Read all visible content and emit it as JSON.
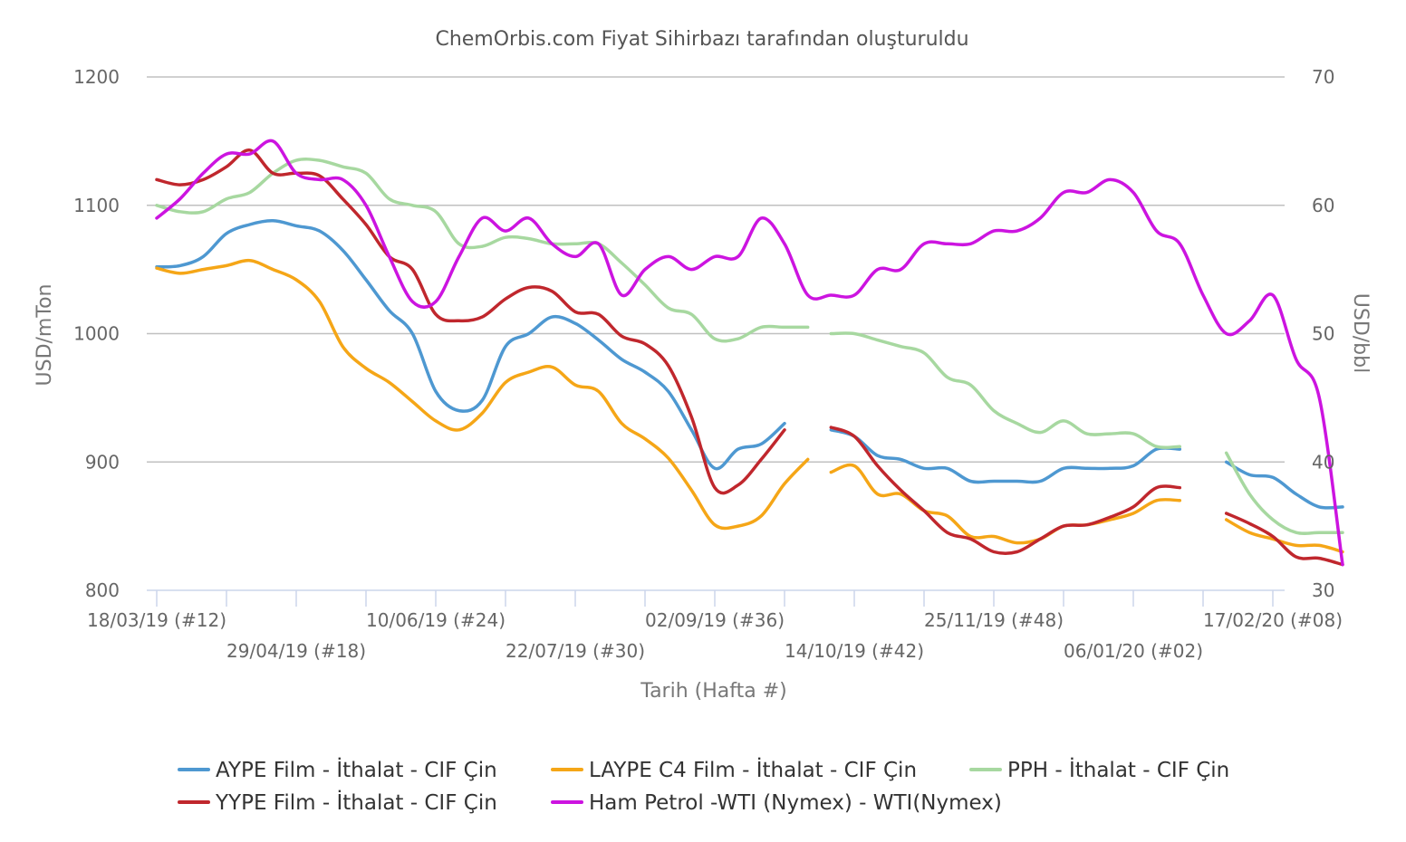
{
  "chart_data": {
    "type": "line",
    "title": "ChemOrbis.com Fiyat Sihirbazı tarafından oluşturuldu",
    "xlabel": "Tarih (Hafta #)",
    "ylabel_left": "USD/mTon",
    "ylabel_right": "USD/bbl",
    "ylim_left": [
      800,
      1200
    ],
    "ylim_right": [
      30,
      70
    ],
    "yticks_left": [
      "800",
      "900",
      "1000",
      "1100",
      "1200"
    ],
    "yticks_right": [
      "30",
      "40",
      "50",
      "60",
      "70"
    ],
    "x_week_range": [
      12,
      60
    ],
    "x_tick_labels": [
      {
        "week": 12,
        "label": "18/03/19 (#12)"
      },
      {
        "week": 18,
        "label": "29/04/19 (#18)"
      },
      {
        "week": 24,
        "label": "10/06/19 (#24)"
      },
      {
        "week": 30,
        "label": "22/07/19 (#30)"
      },
      {
        "week": 36,
        "label": "02/09/19 (#36)"
      },
      {
        "week": 42,
        "label": "14/10/19 (#42)"
      },
      {
        "week": 48,
        "label": "25/11/19 (#48)"
      },
      {
        "week": 54,
        "label": "06/01/20 (#02)"
      },
      {
        "week": 60,
        "label": "17/02/20 (#08)"
      }
    ],
    "grid": true,
    "legend_position": "bottom",
    "series": [
      {
        "name": "AYPE Film - İthalat - CIF Çin",
        "color": "#4e98d1",
        "axis": "left",
        "segments": [
          [
            [
              12,
              1052
            ],
            [
              13,
              1053
            ],
            [
              14,
              1060
            ],
            [
              15,
              1078
            ],
            [
              16,
              1085
            ],
            [
              17,
              1088
            ],
            [
              18,
              1084
            ],
            [
              19,
              1080
            ],
            [
              20,
              1065
            ],
            [
              21,
              1042
            ],
            [
              22,
              1018
            ],
            [
              23,
              1000
            ],
            [
              24,
              955
            ],
            [
              25,
              940
            ],
            [
              26,
              948
            ],
            [
              27,
              990
            ],
            [
              28,
              1000
            ],
            [
              29,
              1013
            ],
            [
              30,
              1008
            ],
            [
              31,
              995
            ],
            [
              32,
              980
            ],
            [
              33,
              970
            ],
            [
              34,
              955
            ],
            [
              35,
              925
            ],
            [
              36,
              895
            ],
            [
              37,
              910
            ],
            [
              38,
              914
            ],
            [
              39,
              930
            ]
          ],
          [
            [
              41,
              925
            ],
            [
              42,
              920
            ],
            [
              43,
              905
            ],
            [
              44,
              902
            ],
            [
              45,
              895
            ],
            [
              46,
              895
            ],
            [
              47,
              885
            ],
            [
              48,
              885
            ],
            [
              49,
              885
            ],
            [
              50,
              885
            ],
            [
              51,
              895
            ],
            [
              52,
              895
            ],
            [
              53,
              895
            ],
            [
              54,
              897
            ],
            [
              55,
              910
            ],
            [
              56,
              910
            ]
          ],
          [
            [
              58,
              900
            ],
            [
              59,
              890
            ],
            [
              60,
              888
            ],
            [
              61,
              875
            ],
            [
              62,
              865
            ],
            [
              63,
              865
            ]
          ]
        ]
      },
      {
        "name": "LAYPE C4 Film - İthalat - CIF Çin",
        "color": "#f5a617",
        "axis": "left",
        "segments": [
          [
            [
              12,
              1051
            ],
            [
              13,
              1047
            ],
            [
              14,
              1050
            ],
            [
              15,
              1053
            ],
            [
              16,
              1057
            ],
            [
              17,
              1050
            ],
            [
              18,
              1042
            ],
            [
              19,
              1025
            ],
            [
              20,
              990
            ],
            [
              21,
              973
            ],
            [
              22,
              962
            ],
            [
              23,
              947
            ],
            [
              24,
              932
            ],
            [
              25,
              925
            ],
            [
              26,
              938
            ],
            [
              27,
              962
            ],
            [
              28,
              970
            ],
            [
              29,
              974
            ],
            [
              30,
              960
            ],
            [
              31,
              955
            ],
            [
              32,
              930
            ],
            [
              33,
              918
            ],
            [
              34,
              903
            ],
            [
              35,
              878
            ],
            [
              36,
              851
            ],
            [
              37,
              850
            ],
            [
              38,
              858
            ],
            [
              39,
              883
            ],
            [
              40,
              902
            ]
          ],
          [
            [
              41,
              892
            ],
            [
              42,
              897
            ],
            [
              43,
              875
            ],
            [
              44,
              875
            ],
            [
              45,
              862
            ],
            [
              46,
              858
            ],
            [
              47,
              842
            ],
            [
              48,
              842
            ],
            [
              49,
              837
            ],
            [
              50,
              840
            ],
            [
              51,
              850
            ],
            [
              52,
              851
            ],
            [
              53,
              855
            ],
            [
              54,
              860
            ],
            [
              55,
              870
            ],
            [
              56,
              870
            ]
          ],
          [
            [
              58,
              855
            ],
            [
              59,
              845
            ],
            [
              60,
              840
            ],
            [
              61,
              835
            ],
            [
              62,
              835
            ],
            [
              63,
              830
            ]
          ]
        ]
      },
      {
        "name": "PPH - İthalat - CIF Çin",
        "color": "#a7d8a0",
        "axis": "left",
        "segments": [
          [
            [
              12,
              1100
            ],
            [
              13,
              1095
            ],
            [
              14,
              1095
            ],
            [
              15,
              1105
            ],
            [
              16,
              1110
            ],
            [
              17,
              1125
            ],
            [
              18,
              1135
            ],
            [
              19,
              1135
            ],
            [
              20,
              1130
            ],
            [
              21,
              1125
            ],
            [
              22,
              1105
            ],
            [
              23,
              1100
            ],
            [
              24,
              1095
            ],
            [
              25,
              1070
            ],
            [
              26,
              1068
            ],
            [
              27,
              1075
            ],
            [
              28,
              1074
            ],
            [
              29,
              1070
            ],
            [
              30,
              1070
            ],
            [
              31,
              1070
            ],
            [
              32,
              1055
            ],
            [
              33,
              1038
            ],
            [
              34,
              1020
            ],
            [
              35,
              1015
            ],
            [
              36,
              996
            ],
            [
              37,
              996
            ],
            [
              38,
              1005
            ],
            [
              39,
              1005
            ],
            [
              40,
              1005
            ]
          ],
          [
            [
              41,
              1000
            ],
            [
              42,
              1000
            ],
            [
              43,
              995
            ],
            [
              44,
              990
            ],
            [
              45,
              985
            ],
            [
              46,
              966
            ],
            [
              47,
              960
            ],
            [
              48,
              940
            ],
            [
              49,
              930
            ],
            [
              50,
              923
            ],
            [
              51,
              932
            ],
            [
              52,
              922
            ],
            [
              53,
              922
            ],
            [
              54,
              922
            ],
            [
              55,
              912
            ],
            [
              56,
              912
            ]
          ],
          [
            [
              58,
              907
            ],
            [
              59,
              875
            ],
            [
              60,
              855
            ],
            [
              61,
              845
            ],
            [
              62,
              845
            ],
            [
              63,
              845
            ]
          ]
        ]
      },
      {
        "name": "YYPE Film - İthalat - CIF Çin",
        "color": "#c0272d",
        "axis": "left",
        "segments": [
          [
            [
              12,
              1120
            ],
            [
              13,
              1116
            ],
            [
              14,
              1120
            ],
            [
              15,
              1130
            ],
            [
              16,
              1143
            ],
            [
              17,
              1125
            ],
            [
              18,
              1125
            ],
            [
              19,
              1123
            ],
            [
              20,
              1105
            ],
            [
              21,
              1085
            ],
            [
              22,
              1060
            ],
            [
              23,
              1050
            ],
            [
              24,
              1015
            ],
            [
              25,
              1010
            ],
            [
              26,
              1013
            ],
            [
              27,
              1027
            ],
            [
              28,
              1036
            ],
            [
              29,
              1033
            ],
            [
              30,
              1017
            ],
            [
              31,
              1015
            ],
            [
              32,
              998
            ],
            [
              33,
              992
            ],
            [
              34,
              975
            ],
            [
              35,
              935
            ],
            [
              36,
              880
            ],
            [
              37,
              882
            ],
            [
              38,
              902
            ],
            [
              39,
              925
            ]
          ],
          [
            [
              41,
              927
            ],
            [
              42,
              920
            ],
            [
              43,
              897
            ],
            [
              44,
              878
            ],
            [
              45,
              862
            ],
            [
              46,
              845
            ],
            [
              47,
              840
            ],
            [
              48,
              830
            ],
            [
              49,
              830
            ],
            [
              50,
              840
            ],
            [
              51,
              850
            ],
            [
              52,
              851
            ],
            [
              53,
              857
            ],
            [
              54,
              865
            ],
            [
              55,
              880
            ],
            [
              56,
              880
            ]
          ],
          [
            [
              58,
              860
            ],
            [
              59,
              852
            ],
            [
              60,
              842
            ],
            [
              61,
              826
            ],
            [
              62,
              825
            ],
            [
              63,
              820
            ]
          ]
        ]
      },
      {
        "name": "Ham Petrol -WTI (Nymex) - WTI(Nymex)",
        "color": "#cc14e0",
        "axis": "right",
        "segments": [
          [
            [
              12,
              59
            ],
            [
              13,
              60.5
            ],
            [
              14,
              62.5
            ],
            [
              15,
              64
            ],
            [
              16,
              64
            ],
            [
              17,
              65
            ],
            [
              18,
              62.5
            ],
            [
              19,
              62
            ],
            [
              20,
              62
            ],
            [
              21,
              60
            ],
            [
              22,
              56
            ],
            [
              23,
              52.5
            ],
            [
              24,
              52.5
            ],
            [
              25,
              56
            ],
            [
              26,
              59
            ],
            [
              27,
              58
            ],
            [
              28,
              59
            ],
            [
              29,
              57
            ],
            [
              30,
              56
            ],
            [
              31,
              57
            ],
            [
              32,
              53
            ],
            [
              33,
              55
            ],
            [
              34,
              56
            ],
            [
              35,
              55
            ],
            [
              36,
              56
            ],
            [
              37,
              56
            ],
            [
              38,
              59
            ],
            [
              39,
              57
            ],
            [
              40,
              53
            ],
            [
              41,
              53
            ],
            [
              42,
              53
            ],
            [
              43,
              55
            ],
            [
              44,
              55
            ],
            [
              45,
              57
            ],
            [
              46,
              57
            ],
            [
              47,
              57
            ],
            [
              48,
              58
            ],
            [
              49,
              58
            ],
            [
              50,
              59
            ],
            [
              51,
              61
            ],
            [
              52,
              61
            ],
            [
              53,
              62
            ],
            [
              54,
              61
            ],
            [
              55,
              58
            ],
            [
              56,
              57
            ],
            [
              57,
              53
            ],
            [
              58,
              50
            ],
            [
              59,
              51
            ],
            [
              60,
              53
            ],
            [
              61,
              48
            ],
            [
              62,
              45
            ],
            [
              63,
              32
            ]
          ]
        ]
      }
    ]
  }
}
